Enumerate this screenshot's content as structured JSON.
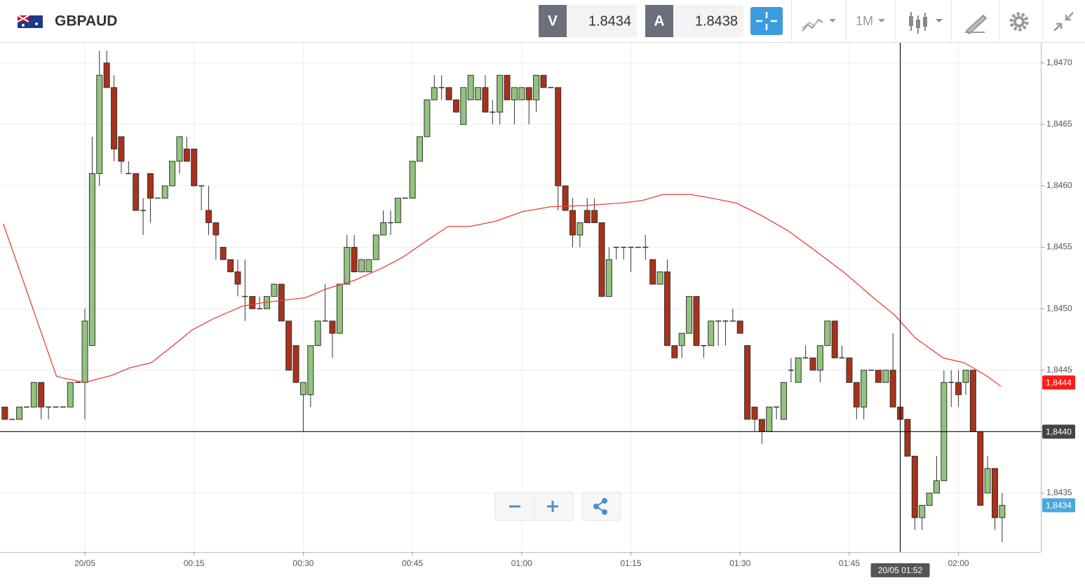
{
  "header": {
    "symbol": "GBPAUD",
    "sell_label": "V",
    "sell_price": 1.8434,
    "buy_label": "A",
    "buy_price": 1.8438,
    "timeframe": "1M"
  },
  "chart_data": {
    "type": "candlestick",
    "x": [
      -11,
      -10,
      -9,
      -8,
      -7,
      -6,
      -5,
      -4,
      -3,
      -2,
      -1,
      0,
      1,
      2,
      3,
      4,
      5,
      6,
      7,
      8,
      9,
      10,
      11,
      12,
      13,
      14,
      15,
      16,
      17,
      18,
      19,
      20,
      21,
      22,
      23,
      24,
      25,
      26,
      27,
      28,
      29,
      30,
      31,
      32,
      33,
      34,
      35,
      36,
      37,
      38,
      39,
      40,
      41,
      42,
      43,
      44,
      45,
      46,
      47,
      48,
      49,
      50,
      51,
      52,
      53,
      54,
      55,
      56,
      57,
      58,
      59,
      60,
      61,
      62,
      63,
      64,
      65,
      66,
      67,
      68,
      69,
      70,
      71,
      72,
      73,
      74,
      75,
      76,
      77,
      78,
      79,
      80,
      81,
      82,
      83,
      84,
      85,
      86,
      87,
      88,
      89,
      90,
      91,
      92,
      93,
      94,
      95,
      96,
      97,
      98,
      99,
      100,
      101,
      102,
      103,
      104,
      105,
      106,
      107,
      108,
      109,
      110,
      111,
      112,
      113,
      114,
      115,
      116,
      117,
      118,
      119,
      120,
      121,
      122,
      123,
      124,
      125,
      126
    ],
    "open": [
      1.8442,
      1.8441,
      1.8441,
      1.8442,
      1.8442,
      1.8444,
      1.8442,
      1.8442,
      1.8442,
      1.8442,
      1.8444,
      1.8444,
      1.8447,
      1.8461,
      1.847,
      1.8468,
      1.8464,
      1.8461,
      1.8461,
      1.8458,
      1.8461,
      1.8459,
      1.8459,
      1.846,
      1.8462,
      1.8463,
      1.8463,
      1.846,
      1.8458,
      1.8457,
      1.8455,
      1.8454,
      1.8453,
      1.8451,
      1.8451,
      1.845,
      1.845,
      1.8451,
      1.8452,
      1.8449,
      1.8447,
      1.8443,
      1.8443,
      1.8447,
      1.8449,
      1.8449,
      1.8448,
      1.8452,
      1.8455,
      1.8453,
      1.8453,
      1.8454,
      1.8456,
      1.8457,
      1.8457,
      1.8459,
      1.8459,
      1.8462,
      1.8464,
      1.8467,
      1.8468,
      1.8468,
      1.8467,
      1.8465,
      1.8467,
      1.8467,
      1.8468,
      1.8466,
      1.8466,
      1.8469,
      1.8467,
      1.8467,
      1.8468,
      1.8467,
      1.8469,
      1.8468,
      1.8468,
      1.846,
      1.8458,
      1.8456,
      1.8458,
      1.8458,
      1.8457,
      1.8451,
      1.8455,
      1.8455,
      1.8455,
      1.8455,
      1.8455,
      1.8454,
      1.8452,
      1.8453,
      1.8447,
      1.8447,
      1.8448,
      1.8451,
      1.8447,
      1.8447,
      1.8449,
      1.8449,
      1.8449,
      1.8449,
      1.8447,
      1.8442,
      1.8441,
      1.844,
      1.8442,
      1.8441,
      1.8445,
      1.8444,
      1.8446,
      1.8446,
      1.8445,
      1.8447,
      1.8449,
      1.8446,
      1.8446,
      1.8444,
      1.8442,
      1.8445,
      1.8445,
      1.8444,
      1.8445,
      1.8442,
      1.8441,
      1.8438,
      1.8433,
      1.8434,
      1.8435,
      1.8436,
      1.8444,
      1.8444,
      1.8444,
      1.8445,
      1.844,
      1.8435,
      1.8437,
      1.8433
    ],
    "high": [
      1.8442,
      1.8441,
      1.8442,
      1.8442,
      1.8444,
      1.8444,
      1.8442,
      1.8442,
      1.8442,
      1.8444,
      1.8444,
      1.845,
      1.8464,
      1.8471,
      1.8471,
      1.8469,
      1.8464,
      1.8462,
      1.8461,
      1.8459,
      1.8461,
      1.8459,
      1.846,
      1.8462,
      1.8464,
      1.8464,
      1.8463,
      1.846,
      1.846,
      1.8457,
      1.8455,
      1.8454,
      1.8454,
      1.8454,
      1.8451,
      1.8451,
      1.8451,
      1.8452,
      1.8452,
      1.8449,
      1.8447,
      1.8444,
      1.8447,
      1.8449,
      1.8452,
      1.8449,
      1.8452,
      1.8456,
      1.8456,
      1.8454,
      1.8454,
      1.8456,
      1.8458,
      1.8458,
      1.8459,
      1.8459,
      1.8462,
      1.8464,
      1.8467,
      1.8469,
      1.8469,
      1.8468,
      1.8467,
      1.8468,
      1.8469,
      1.8468,
      1.8469,
      1.8467,
      1.8469,
      1.8469,
      1.8468,
      1.8468,
      1.8468,
      1.8469,
      1.8469,
      1.8468,
      1.8468,
      1.846,
      1.8459,
      1.8457,
      1.8459,
      1.8459,
      1.8457,
      1.8455,
      1.8455,
      1.8455,
      1.8455,
      1.8455,
      1.8456,
      1.8454,
      1.8453,
      1.8454,
      1.8447,
      1.8448,
      1.8451,
      1.8451,
      1.8447,
      1.8449,
      1.8449,
      1.8449,
      1.845,
      1.8449,
      1.8447,
      1.8442,
      1.8441,
      1.8442,
      1.8442,
      1.8444,
      1.8446,
      1.8446,
      1.8447,
      1.8446,
      1.8447,
      1.8449,
      1.8449,
      1.8447,
      1.8446,
      1.8444,
      1.8445,
      1.8445,
      1.8445,
      1.8445,
      1.8448,
      1.8442,
      1.8441,
      1.8438,
      1.8434,
      1.8435,
      1.8438,
      1.8445,
      1.8445,
      1.8445,
      1.8445,
      1.8445,
      1.844,
      1.8438,
      1.8437,
      1.8435
    ],
    "low": [
      1.8441,
      1.8441,
      1.8441,
      1.8442,
      1.8442,
      1.8441,
      1.8441,
      1.8442,
      1.8442,
      1.8442,
      1.8444,
      1.8441,
      1.8447,
      1.846,
      1.8468,
      1.8462,
      1.8461,
      1.8461,
      1.8458,
      1.8456,
      1.8457,
      1.8459,
      1.8459,
      1.846,
      1.8461,
      1.8462,
      1.846,
      1.8458,
      1.8456,
      1.8454,
      1.8454,
      1.8453,
      1.8451,
      1.8449,
      1.845,
      1.845,
      1.845,
      1.8451,
      1.8449,
      1.8445,
      1.8444,
      1.844,
      1.8442,
      1.8447,
      1.8449,
      1.8446,
      1.8448,
      1.8452,
      1.8453,
      1.8453,
      1.8453,
      1.8454,
      1.8456,
      1.8456,
      1.8457,
      1.8459,
      1.8459,
      1.8462,
      1.8464,
      1.8467,
      1.8467,
      1.8467,
      1.8466,
      1.8465,
      1.8467,
      1.8467,
      1.8466,
      1.8465,
      1.8465,
      1.8467,
      1.8465,
      1.8467,
      1.8465,
      1.8466,
      1.8468,
      1.8468,
      1.8458,
      1.8458,
      1.8455,
      1.8455,
      1.8457,
      1.8457,
      1.8451,
      1.8451,
      1.8454,
      1.8454,
      1.8453,
      1.8455,
      1.8454,
      1.8452,
      1.8452,
      1.8447,
      1.8446,
      1.8446,
      1.8448,
      1.8447,
      1.8446,
      1.8447,
      1.8447,
      1.8447,
      1.8449,
      1.8448,
      1.8441,
      1.844,
      1.8439,
      1.844,
      1.8441,
      1.8441,
      1.8444,
      1.8444,
      1.8446,
      1.8445,
      1.8444,
      1.8447,
      1.8446,
      1.8446,
      1.8444,
      1.8441,
      1.8441,
      1.8445,
      1.8444,
      1.8444,
      1.8442,
      1.8441,
      1.8438,
      1.8432,
      1.8432,
      1.8434,
      1.8435,
      1.8436,
      1.8442,
      1.8442,
      1.8443,
      1.844,
      1.8434,
      1.8435,
      1.8432,
      1.8431
    ],
    "close": [
      1.8441,
      1.8441,
      1.8442,
      1.8442,
      1.8444,
      1.8442,
      1.8442,
      1.8442,
      1.8442,
      1.8444,
      1.8444,
      1.8449,
      1.8461,
      1.8469,
      1.8468,
      1.8463,
      1.8462,
      1.8461,
      1.8458,
      1.8458,
      1.8459,
      1.8459,
      1.846,
      1.8462,
      1.8464,
      1.8462,
      1.846,
      1.846,
      1.8457,
      1.8456,
      1.8454,
      1.8453,
      1.8452,
      1.8451,
      1.845,
      1.845,
      1.8451,
      1.8452,
      1.8449,
      1.8445,
      1.8444,
      1.8444,
      1.8447,
      1.8449,
      1.8449,
      1.8448,
      1.8452,
      1.8455,
      1.8453,
      1.8454,
      1.8454,
      1.8456,
      1.8457,
      1.8457,
      1.8459,
      1.8459,
      1.8462,
      1.8464,
      1.8467,
      1.8468,
      1.8468,
      1.8467,
      1.8466,
      1.8468,
      1.8469,
      1.8468,
      1.8466,
      1.8466,
      1.8469,
      1.8467,
      1.8468,
      1.8468,
      1.8467,
      1.8469,
      1.8468,
      1.8468,
      1.846,
      1.8458,
      1.8456,
      1.8457,
      1.8457,
      1.8457,
      1.8451,
      1.8454,
      1.8455,
      1.8455,
      1.8455,
      1.8455,
      1.8455,
      1.8452,
      1.8453,
      1.8447,
      1.8446,
      1.8448,
      1.8451,
      1.8447,
      1.8447,
      1.8449,
      1.8449,
      1.8449,
      1.8449,
      1.8448,
      1.8441,
      1.8441,
      1.844,
      1.8442,
      1.8442,
      1.8444,
      1.8445,
      1.8446,
      1.8446,
      1.8445,
      1.8447,
      1.8449,
      1.8446,
      1.8446,
      1.8444,
      1.8442,
      1.8445,
      1.8445,
      1.8444,
      1.8445,
      1.8442,
      1.8441,
      1.8438,
      1.8433,
      1.8434,
      1.8435,
      1.8436,
      1.8444,
      1.8444,
      1.8443,
      1.8445,
      1.844,
      1.8434,
      1.8437,
      1.8433,
      1.8434
    ],
    "up_color": "#93c47d",
    "down_color": "#a8321b",
    "moving_average": {
      "color": "#e8413c",
      "x": [
        -11.2,
        -3.9,
        -2.5,
        0,
        3.8,
        6.2,
        9.1,
        11.9,
        14.8,
        17.7,
        21.6,
        24.5,
        30.3,
        33.1,
        37.0,
        40.8,
        43.7,
        46.6,
        49.9,
        52.9,
        56.3,
        60.1,
        64.0,
        68.8,
        73.6,
        76.5,
        79.4,
        83.2,
        86.1,
        89.5,
        92.9,
        96.7,
        100.6,
        104.4,
        108.3,
        111.2,
        114.1,
        117.9,
        120.8,
        123.7,
        125.8
      ],
      "values": [
        1.84569,
        1.84445,
        1.84443,
        1.8444,
        1.84446,
        1.84452,
        1.84456,
        1.84469,
        1.84483,
        1.84492,
        1.84502,
        1.84505,
        1.84509,
        1.84516,
        1.84523,
        1.84533,
        1.84542,
        1.84554,
        1.84567,
        1.84567,
        1.84571,
        1.84579,
        1.84583,
        1.84584,
        1.84586,
        1.84588,
        1.84593,
        1.84593,
        1.8459,
        1.84586,
        1.84576,
        1.84563,
        1.84546,
        1.84529,
        1.84509,
        1.84495,
        1.84476,
        1.8446,
        1.84456,
        1.84446,
        1.84437
      ]
    },
    "xlim": [
      -11.66,
      131.31
    ],
    "ylim": [
      1.84302,
      1.84717
    ],
    "xticks": [
      {
        "value": 0,
        "label": "20/05"
      },
      {
        "value": 15,
        "label": "00:15"
      },
      {
        "value": 30,
        "label": "00:30"
      },
      {
        "value": 45,
        "label": "00:45"
      },
      {
        "value": 60,
        "label": "01:00"
      },
      {
        "value": 75,
        "label": "01:15"
      },
      {
        "value": 90,
        "label": "01:30"
      },
      {
        "value": 105,
        "label": "01:45"
      },
      {
        "value": 120,
        "label": "02:00"
      }
    ],
    "yticks": [
      {
        "value": 1.8435,
        "label": "1,8435"
      },
      {
        "value": 1.844,
        "label": "1,8440"
      },
      {
        "value": 1.8445,
        "label": "1,8445"
      },
      {
        "value": 1.845,
        "label": "1,8450"
      },
      {
        "value": 1.8455,
        "label": "1,8455"
      },
      {
        "value": 1.846,
        "label": "1,8460"
      },
      {
        "value": 1.8465,
        "label": "1,8465"
      },
      {
        "value": 1.847,
        "label": "1,8470"
      }
    ],
    "grid": true,
    "price_labels": [
      {
        "value": 1.8444,
        "label": "1,8444",
        "color": "#ff1a1a"
      },
      {
        "value": 1.8434,
        "label": "1,8434",
        "color": "#4aa8de"
      }
    ],
    "crosshair": {
      "x": {
        "value": 112,
        "label": "20/05 01:52"
      },
      "y": {
        "value": 1.844,
        "label": "1,8440"
      },
      "color": "#111111"
    }
  }
}
